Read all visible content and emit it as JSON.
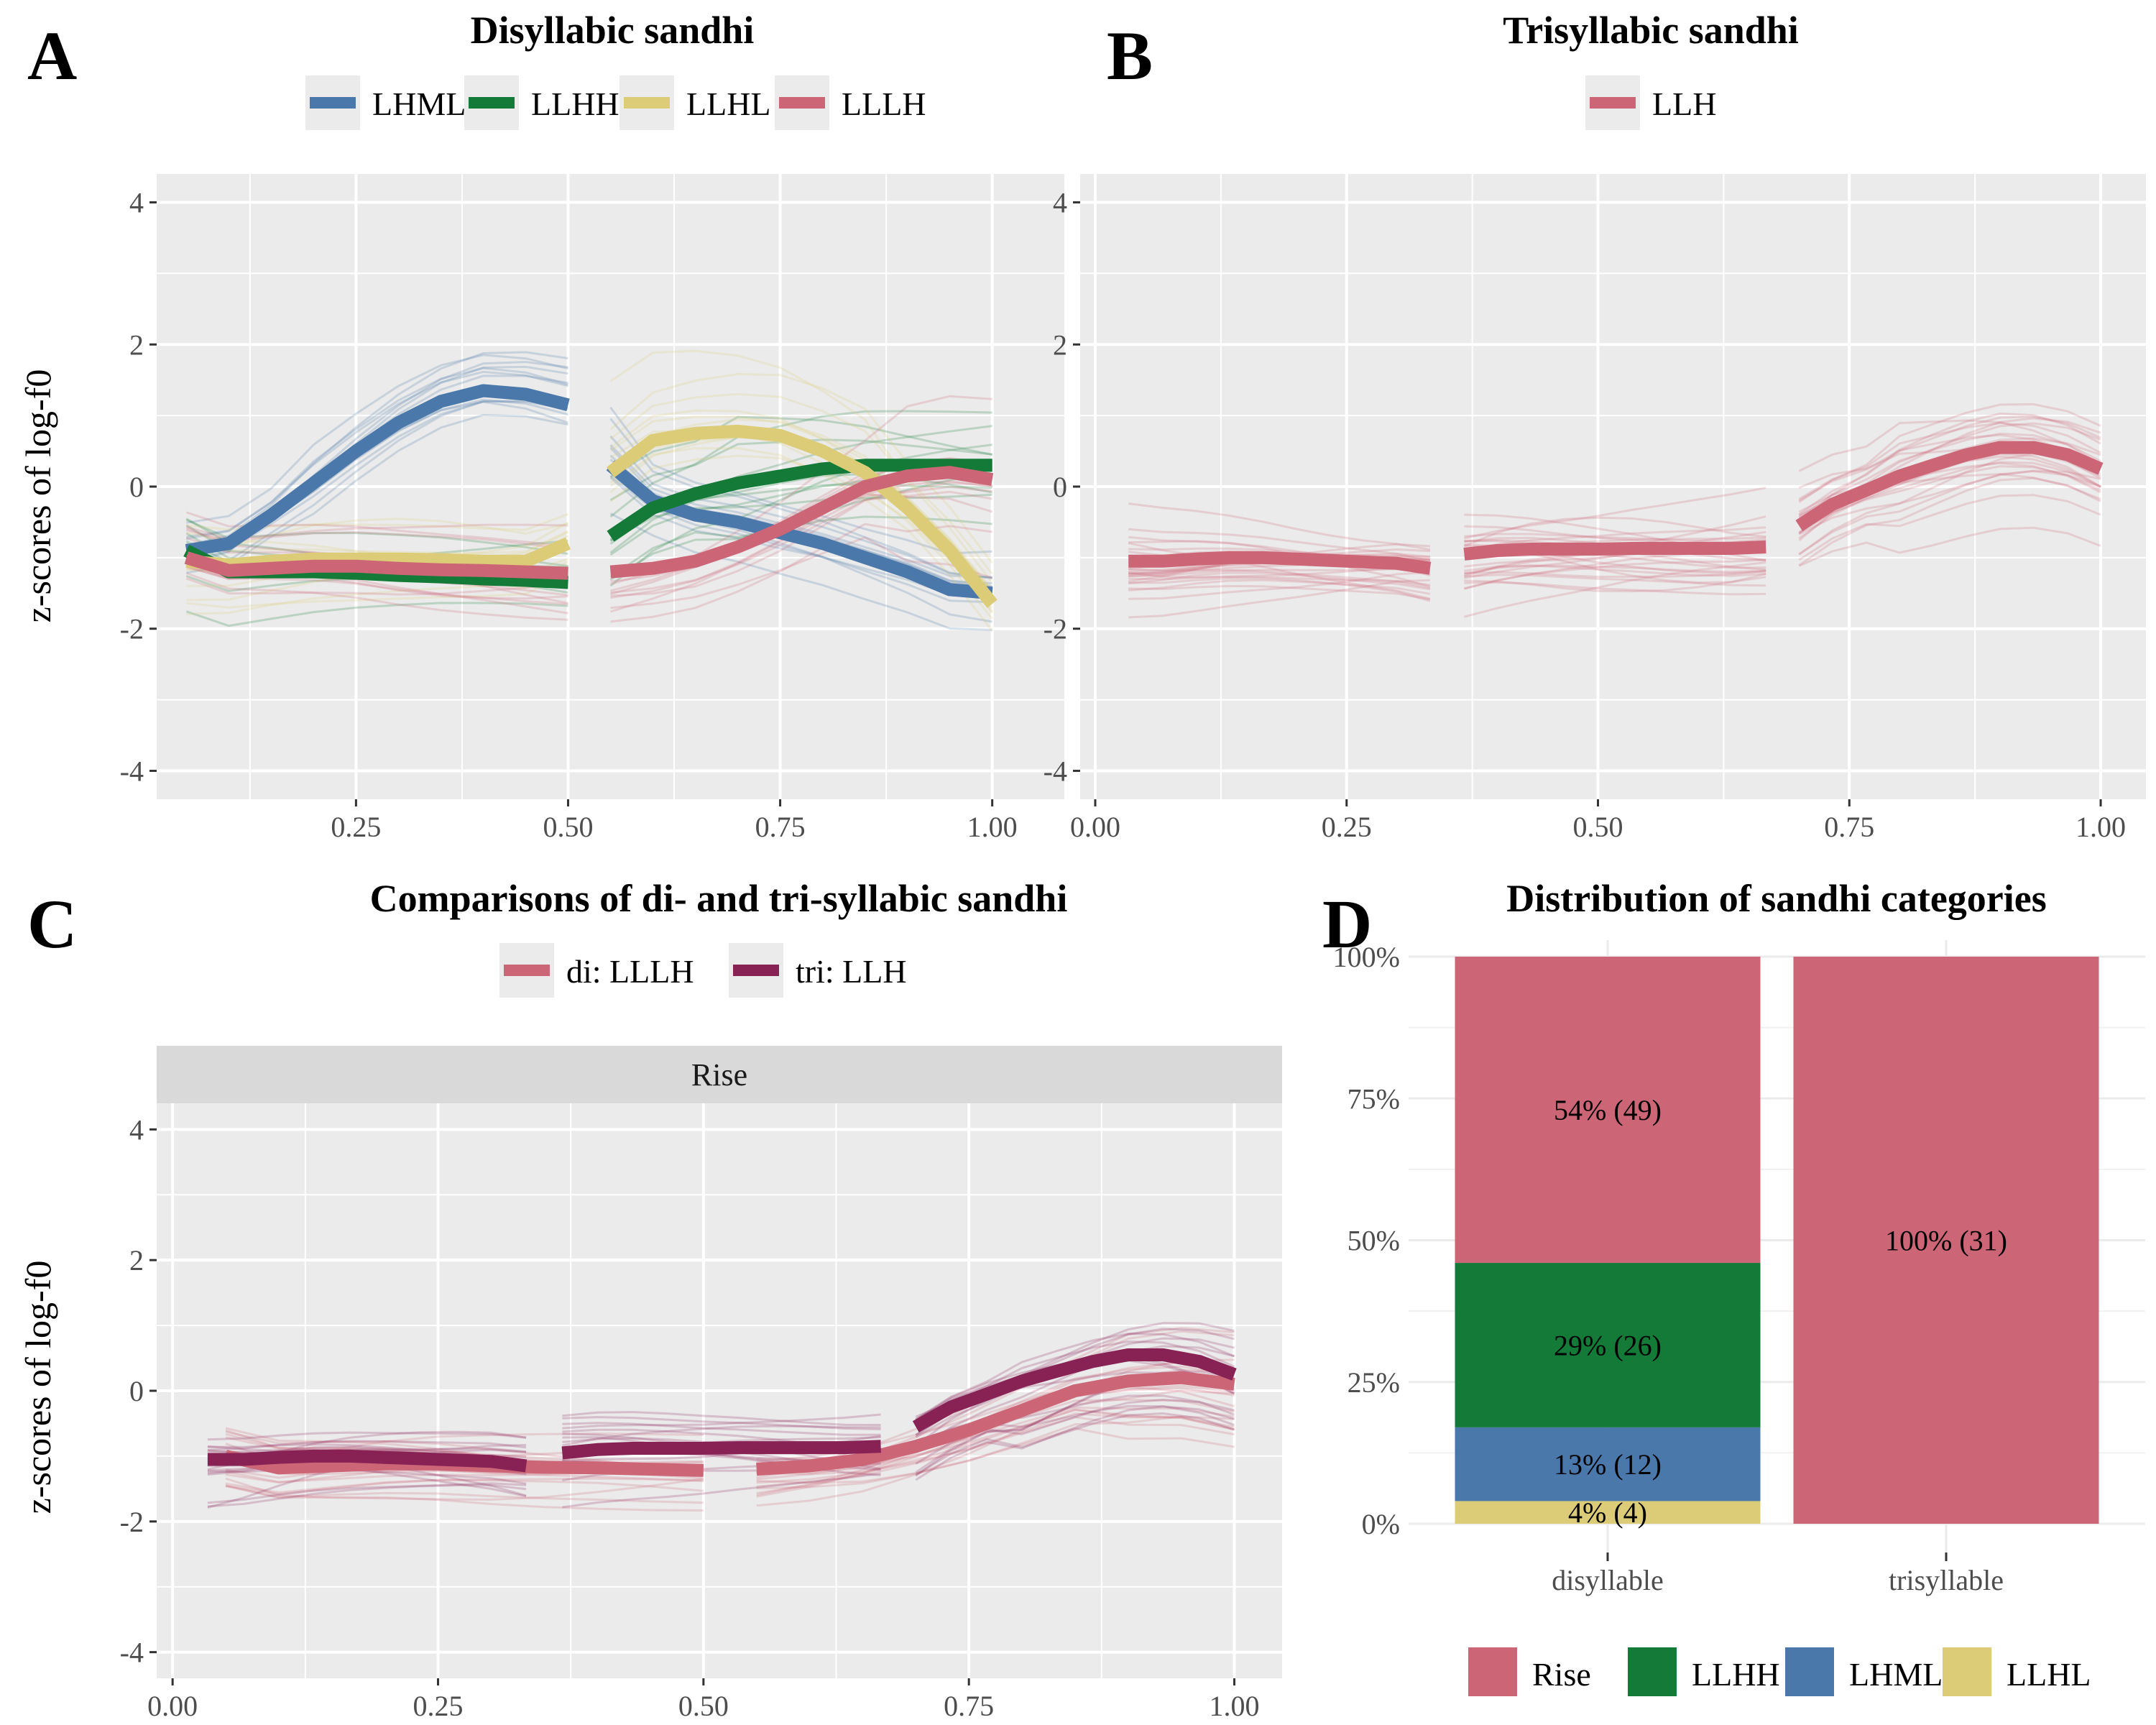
{
  "colors": {
    "LHML": "#4a78aa",
    "LLHH": "#137a37",
    "LLHL": "#dccc77",
    "LLLH": "#cc6677",
    "tri_LLH": "#882255",
    "panel_bg": "#ebebeb",
    "grid": "#ffffff",
    "strip_bg": "#d9d9d9"
  },
  "chart_data": [
    {
      "id": "A",
      "type": "line",
      "letter": "A",
      "title": "Disyllabic sandhi",
      "ylabel": "z-scores of log-f0",
      "xlim": [
        0.015,
        1.085
      ],
      "ylim": [
        -4.4,
        4.4
      ],
      "xticks": [
        "0.25",
        "0.50",
        "0.75",
        "1.00"
      ],
      "xtick_values": [
        0.25,
        0.5,
        0.75,
        1.0
      ],
      "yticks": [
        "-4",
        "-2",
        "0",
        "2",
        "4"
      ],
      "ytick_values": [
        -4,
        -2,
        0,
        2,
        4
      ],
      "legend": [
        "LHML",
        "LLHH",
        "LLHL",
        "LLLH"
      ],
      "series": [
        {
          "name": "LHML",
          "x": [
            0.05,
            0.1,
            0.15,
            0.2,
            0.25,
            0.3,
            0.35,
            0.4,
            0.45,
            0.5,
            0.55,
            0.6,
            0.65,
            0.7,
            0.75,
            0.8,
            0.85,
            0.9,
            0.95,
            1.0
          ],
          "y": [
            -0.9,
            -0.8,
            -0.4,
            0.05,
            0.5,
            0.9,
            1.2,
            1.35,
            1.3,
            1.15,
            0.3,
            -0.2,
            -0.4,
            -0.5,
            -0.65,
            -0.8,
            -1.0,
            -1.2,
            -1.45,
            -1.5
          ]
        },
        {
          "name": "LLHH",
          "x": [
            0.05,
            0.1,
            0.15,
            0.2,
            0.25,
            0.3,
            0.35,
            0.4,
            0.45,
            0.5,
            0.55,
            0.6,
            0.65,
            0.7,
            0.75,
            0.8,
            0.85,
            0.9,
            0.95,
            1.0
          ],
          "y": [
            -0.9,
            -1.2,
            -1.2,
            -1.2,
            -1.22,
            -1.25,
            -1.27,
            -1.3,
            -1.32,
            -1.35,
            -0.7,
            -0.3,
            -0.1,
            0.05,
            0.15,
            0.25,
            0.3,
            0.3,
            0.3,
            0.3
          ]
        },
        {
          "name": "LLHL",
          "x": [
            0.05,
            0.1,
            0.15,
            0.2,
            0.25,
            0.3,
            0.35,
            0.4,
            0.45,
            0.5,
            0.55,
            0.6,
            0.65,
            0.7,
            0.75,
            0.8,
            0.85,
            0.9,
            0.95,
            1.0
          ],
          "y": [
            -1.05,
            -1.1,
            -1.05,
            -1.02,
            -1.02,
            -1.02,
            -1.03,
            -1.05,
            -1.05,
            -0.8,
            0.2,
            0.65,
            0.75,
            0.78,
            0.72,
            0.5,
            0.2,
            -0.3,
            -0.9,
            -1.65
          ]
        },
        {
          "name": "LLLH",
          "x": [
            0.05,
            0.1,
            0.15,
            0.2,
            0.25,
            0.3,
            0.35,
            0.4,
            0.45,
            0.5,
            0.55,
            0.6,
            0.65,
            0.7,
            0.75,
            0.8,
            0.85,
            0.9,
            0.95,
            1.0
          ],
          "y": [
            -1.0,
            -1.18,
            -1.15,
            -1.12,
            -1.12,
            -1.15,
            -1.17,
            -1.18,
            -1.2,
            -1.22,
            -1.2,
            -1.15,
            -1.05,
            -0.85,
            -0.6,
            -0.3,
            0.0,
            0.15,
            0.2,
            0.1
          ]
        }
      ]
    },
    {
      "id": "B",
      "type": "line",
      "letter": "B",
      "title": "Trisyllabic sandhi",
      "ylabel": "",
      "xlim": [
        -0.015,
        1.045
      ],
      "ylim": [
        -4.4,
        4.4
      ],
      "xticks": [
        "0.00",
        "0.25",
        "0.50",
        "0.75",
        "1.00"
      ],
      "xtick_values": [
        0,
        0.25,
        0.5,
        0.75,
        1.0
      ],
      "yticks": [
        "-4",
        "-2",
        "0",
        "2",
        "4"
      ],
      "ytick_values": [
        -4,
        -2,
        0,
        2,
        4
      ],
      "legend": [
        "LLH"
      ],
      "series": [
        {
          "name": "LLH",
          "x": [
            0.033,
            0.067,
            0.1,
            0.133,
            0.167,
            0.2,
            0.233,
            0.267,
            0.3,
            0.333,
            0.367,
            0.4,
            0.433,
            0.467,
            0.5,
            0.533,
            0.567,
            0.6,
            0.633,
            0.667,
            0.7,
            0.733,
            0.767,
            0.8,
            0.833,
            0.867,
            0.9,
            0.933,
            0.967,
            1.0
          ],
          "y": [
            -1.05,
            -1.05,
            -1.02,
            -1.0,
            -1.0,
            -1.02,
            -1.04,
            -1.06,
            -1.08,
            -1.15,
            -0.95,
            -0.9,
            -0.88,
            -0.88,
            -0.88,
            -0.87,
            -0.87,
            -0.87,
            -0.87,
            -0.85,
            -0.55,
            -0.25,
            -0.05,
            0.15,
            0.3,
            0.45,
            0.55,
            0.55,
            0.45,
            0.25
          ]
        }
      ]
    },
    {
      "id": "C",
      "type": "line",
      "letter": "C",
      "title": "Comparisons of di- and tri-syllabic sandhi",
      "strip": "Rise",
      "ylabel": "z-scores of log-f0",
      "xlim": [
        -0.015,
        1.045
      ],
      "ylim": [
        -4.4,
        4.4
      ],
      "xticks": [
        "0.00",
        "0.25",
        "0.50",
        "0.75",
        "1.00"
      ],
      "xtick_values": [
        0,
        0.25,
        0.5,
        0.75,
        1.0
      ],
      "yticks": [
        "-4",
        "-2",
        "0",
        "2",
        "4"
      ],
      "ytick_values": [
        -4,
        -2,
        0,
        2,
        4
      ],
      "legend": [
        "di: LLLH",
        "tri: LLH"
      ],
      "series": [
        {
          "name": "di: LLLH",
          "x": [
            0.05,
            0.1,
            0.15,
            0.2,
            0.25,
            0.3,
            0.35,
            0.4,
            0.45,
            0.5,
            0.55,
            0.6,
            0.65,
            0.7,
            0.75,
            0.8,
            0.85,
            0.9,
            0.95,
            1.0
          ],
          "y": [
            -1.0,
            -1.18,
            -1.15,
            -1.12,
            -1.12,
            -1.15,
            -1.17,
            -1.18,
            -1.2,
            -1.22,
            -1.2,
            -1.15,
            -1.05,
            -0.85,
            -0.6,
            -0.3,
            0.0,
            0.15,
            0.2,
            0.1
          ]
        },
        {
          "name": "tri: LLH",
          "x": [
            0.033,
            0.067,
            0.1,
            0.133,
            0.167,
            0.2,
            0.233,
            0.267,
            0.3,
            0.333,
            0.367,
            0.4,
            0.433,
            0.467,
            0.5,
            0.533,
            0.567,
            0.6,
            0.633,
            0.667,
            0.7,
            0.733,
            0.767,
            0.8,
            0.833,
            0.867,
            0.9,
            0.933,
            0.967,
            1.0
          ],
          "y": [
            -1.05,
            -1.05,
            -1.02,
            -1.0,
            -1.0,
            -1.02,
            -1.04,
            -1.06,
            -1.08,
            -1.15,
            -0.95,
            -0.9,
            -0.88,
            -0.88,
            -0.88,
            -0.87,
            -0.87,
            -0.87,
            -0.87,
            -0.85,
            -0.55,
            -0.25,
            -0.05,
            0.15,
            0.3,
            0.45,
            0.55,
            0.55,
            0.45,
            0.25
          ]
        }
      ]
    },
    {
      "id": "D",
      "type": "bar",
      "stacked": true,
      "letter": "D",
      "title": "Distribution of sandhi categories",
      "categories": [
        "disyllable",
        "trisyllable"
      ],
      "yticks": [
        "0%",
        "25%",
        "50%",
        "75%",
        "100%"
      ],
      "ytick_values": [
        0,
        0.25,
        0.5,
        0.75,
        1.0
      ],
      "ylim": [
        0,
        1
      ],
      "legend": [
        "Rise",
        "LLHH",
        "LHML",
        "LLHL"
      ],
      "stack_order": [
        "LLHL",
        "LHML",
        "LLHH",
        "Rise"
      ],
      "series": [
        {
          "name": "Rise",
          "values": [
            0.54,
            1.0
          ],
          "labels": [
            "54% (49)",
            "100% (31)"
          ]
        },
        {
          "name": "LLHH",
          "values": [
            0.29,
            0
          ],
          "labels": [
            "29% (26)",
            ""
          ]
        },
        {
          "name": "LHML",
          "values": [
            0.13,
            0
          ],
          "labels": [
            "13% (12)",
            ""
          ]
        },
        {
          "name": "LLHL",
          "values": [
            0.04,
            0
          ],
          "labels": [
            "4% (4)",
            ""
          ]
        }
      ]
    }
  ]
}
